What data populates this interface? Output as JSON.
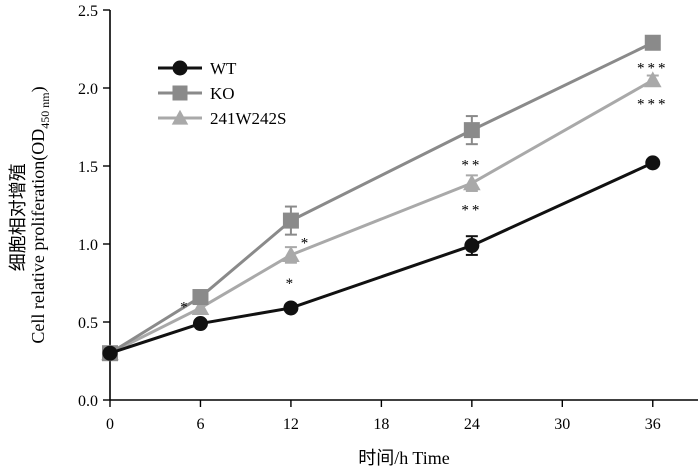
{
  "chart_data": {
    "type": "line",
    "title": "",
    "xlabel": "时间/h Time",
    "ylabel_cn": "细胞相对增殖",
    "ylabel_en": "Cell relative proliferation(OD",
    "ylabel_sub": "450 nm",
    "ylabel_close": ")",
    "x": [
      0,
      6,
      12,
      24,
      36
    ],
    "xticks": [
      0,
      6,
      12,
      18,
      24,
      30,
      36
    ],
    "yticks": [
      0.0,
      0.5,
      1.0,
      1.5,
      2.0,
      2.5
    ],
    "yticklabels": [
      "0.0",
      "0.5",
      "1.0",
      "1.5",
      "2.0",
      "2.5"
    ],
    "xlim": [
      0,
      39
    ],
    "ylim": [
      0,
      2.5
    ],
    "legend_position": "top-left",
    "series": [
      {
        "name": "WT",
        "marker": "circle",
        "color": "#111111",
        "values": [
          0.3,
          0.49,
          0.59,
          0.99,
          1.52
        ],
        "errors": [
          0.02,
          0.02,
          0.02,
          0.06,
          0.02
        ]
      },
      {
        "name": "KO",
        "marker": "square",
        "color": "#8a8a8a",
        "values": [
          0.3,
          0.66,
          1.15,
          1.73,
          2.29
        ],
        "errors": [
          0.02,
          0.03,
          0.09,
          0.09,
          0.03
        ]
      },
      {
        "name": "241W242S",
        "marker": "triangle",
        "color": "#a9a9a9",
        "values": [
          0.3,
          0.59,
          0.93,
          1.39,
          2.05
        ],
        "errors": [
          0.02,
          0.03,
          0.05,
          0.05,
          0.03
        ]
      }
    ],
    "annotations": [
      {
        "text": "*",
        "x": 5,
        "y": 0.62
      },
      {
        "text": "*",
        "x": 13,
        "y": 1.03
      },
      {
        "text": "*",
        "x": 12,
        "y": 0.77
      },
      {
        "text": "**",
        "x": 24,
        "y": 1.53
      },
      {
        "text": "**",
        "x": 24,
        "y": 1.24
      },
      {
        "text": "***",
        "x": 36,
        "y": 2.15
      },
      {
        "text": "***",
        "x": 36,
        "y": 1.92
      }
    ]
  }
}
